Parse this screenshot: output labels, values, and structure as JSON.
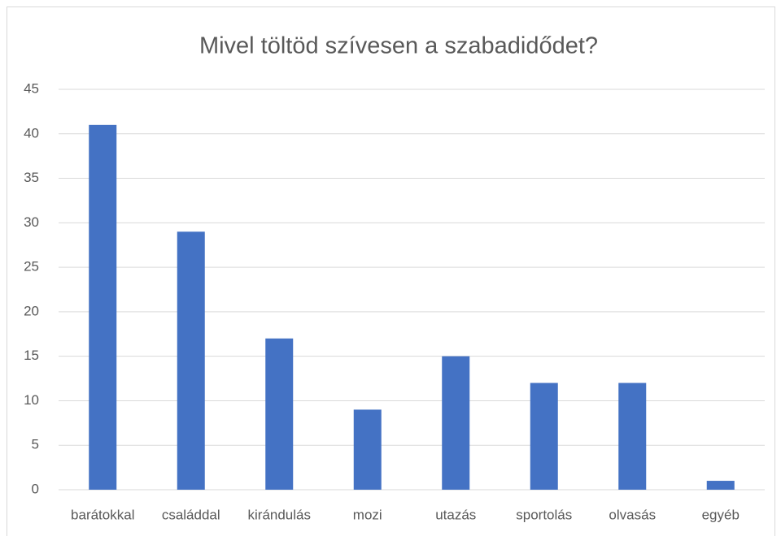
{
  "chart_data": {
    "type": "bar",
    "title": "Mivel töltöd szívesen a szabadidődet?",
    "categories": [
      "barátokkal",
      "családdal",
      "kirándulás",
      "mozi",
      "utazás",
      "sportolás",
      "olvasás",
      "egyéb"
    ],
    "values": [
      41,
      29,
      17,
      9,
      15,
      12,
      12,
      1
    ],
    "color": "#4472c4",
    "ylim": [
      0,
      45
    ],
    "yticks": [
      0,
      5,
      10,
      15,
      20,
      25,
      30,
      35,
      40,
      45
    ],
    "grid": true
  }
}
